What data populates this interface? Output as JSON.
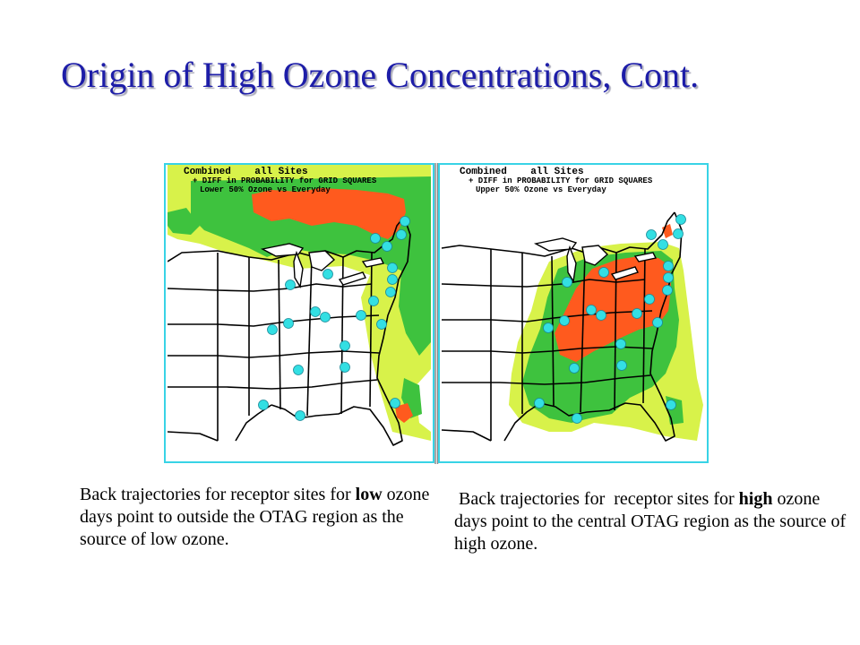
{
  "slide": {
    "title": "Origin of High Ozone Concentrations, Cont."
  },
  "maps": [
    {
      "heading": "Combined    all Sites",
      "subheading": "+ DIFF in PROBABILITY for GRID SQUARES",
      "subtitle": "Lower 50% Ozone vs Everyday"
    },
    {
      "heading": "Combined    all Sites",
      "subheading": "+ DIFF in PROBABILITY for GRID SQUARES",
      "subtitle": "Upper 50% Ozone vs Everyday"
    }
  ],
  "captions": {
    "left": {
      "before": "Back trajectories for receptor sites for ",
      "bold": "low",
      "after": " ozone days point to outside the OTAG region as the source of low ozone."
    },
    "right": {
      "before": " Back trajectories for  receptor sites for ",
      "bold": "high",
      "after": " ozone days point to the central OTAG region as the source of high ozone."
    }
  },
  "colors": {
    "title": "#1d1da8",
    "high_probability": "#ff5a1e",
    "medium_probability": "#3ec23e",
    "low_probability": "#d8f24a",
    "receptor_site": "#33dfe3",
    "frame": "#38d3e6"
  },
  "icons": [
    "receptor-site-icon"
  ]
}
